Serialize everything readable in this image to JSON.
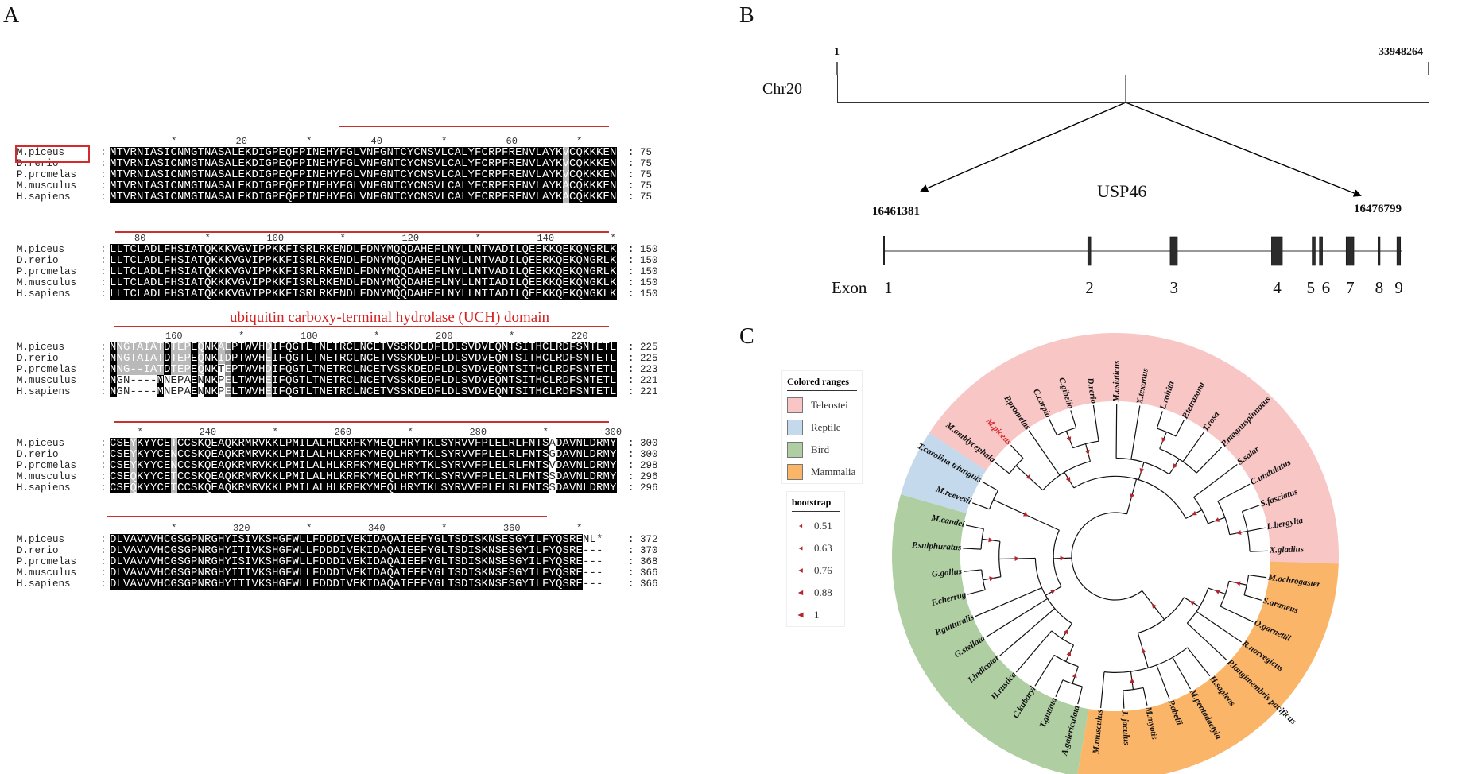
{
  "panels": {
    "a": "A",
    "b": "B",
    "c": "C"
  },
  "alignment": {
    "species": [
      "M.piceus",
      "D.rerio",
      "P.prcmelas",
      "M.musculus",
      "H.sapiens"
    ],
    "separator": ":",
    "domain_label": "ubiquitin carboxy-terminal hydrolase (UCH) domain",
    "blocks": [
      {
        "start": 1,
        "ruler": [
          {
            "pos": 10,
            "label": "*"
          },
          {
            "pos": 20,
            "label": "20"
          },
          {
            "pos": 30,
            "label": "*"
          },
          {
            "pos": 40,
            "label": "40"
          },
          {
            "pos": 50,
            "label": "*"
          },
          {
            "pos": 60,
            "label": "60"
          },
          {
            "pos": 70,
            "label": "*"
          }
        ],
        "masks": [
          "BBBBBBBBBBBBBBBBBBBBBBBBBBBBBBBBBBBBBBBBBBBBBBBBBBBBBBBBBBBBBBBBBBBGBBBBBBB"
        ],
        "rows": [
          {
            "seq": "MTVRNIASICNMGTNASALEKDIGPEQFPINEHYFGLVNFGNTCYCNSVLCALYFCRPFRENVLAYKVCQKKKEN",
            "count": "75"
          },
          {
            "seq": "MTVRNIASICNMGTNASALEKDIGPEQFPINEHYFGLVNFGNTCYCNSVLCALYFCRPFRENVLAYKVCQKKKEN",
            "count": "75"
          },
          {
            "seq": "MTVRNIASICNMGTNASALEKDIGPEQFPINEHYFGLVNFGNTCYCNSVLCALYFCRPFRENVLAYKVCQKKKEN",
            "count": "75"
          },
          {
            "seq": "MTVRNIASICNMGTNASALEKDIGPEQFPINEHYFGLVNFGNTCYCNSVLCALYFCRPFRENVLAYKACQKKKEN",
            "count": "75"
          },
          {
            "seq": "MTVRNIASICNMGTNASALEKDIGPEQFPINEHYFGLVNFGNTCYCNSVLCALYFCRPFRENVLAYKACQKKKEN",
            "count": "75"
          }
        ]
      },
      {
        "start": 76,
        "ruler": [
          {
            "pos": 80,
            "label": "80"
          },
          {
            "pos": 90,
            "label": "*"
          },
          {
            "pos": 100,
            "label": "100"
          },
          {
            "pos": 110,
            "label": "*"
          },
          {
            "pos": 120,
            "label": "120"
          },
          {
            "pos": 130,
            "label": "*"
          },
          {
            "pos": 140,
            "label": "140"
          },
          {
            "pos": 150,
            "label": "*"
          }
        ],
        "masks": [
          "BBBBBBBBBBBBBBBBBBBBBBBBBBBBBBBBBBBBBBBBBBBBBBBBBBBBBBBBBBBBBBBBBBBBBBBBBBB"
        ],
        "rows": [
          {
            "seq": "LLTCLADLFHSIATQKKKVGVIPPKKFISRLRKENDLFDNYMQQDAHEFLNYLLNTVADILQEEKKQEKQNGRLK",
            "count": "150"
          },
          {
            "seq": "LLTCLADLFHSIATQKKKVGVIPPKKFISRLRKENDLFDNYMQQDAHEFLNYLLNTVADILQEERKQEKQNGRLK",
            "count": "150"
          },
          {
            "seq": "LLTCLADLFHSIATQKKKVGVIPPKKFISRLRKENDLFDNYMQQDAHEFLNYLLNTVADILQEEKKQEKQNGRLK",
            "count": "150"
          },
          {
            "seq": "LLTCLADLFHSIATQKKKVGVIPPKKFISRLRKENDLFDNYMQQDAHEFLNYLLNTIADILQEEKKQEKQNGKLK",
            "count": "150"
          },
          {
            "seq": "LLTCLADLFHSIATQKKKVGVIPPKKFISRLRKENDLFDNYMQQDAHEFLNYLLNTIADILQEEKKQEKQNGKLK",
            "count": "150"
          }
        ]
      },
      {
        "start": 151,
        "ruler": [
          {
            "pos": 160,
            "label": "160"
          },
          {
            "pos": 170,
            "label": "*"
          },
          {
            "pos": 180,
            "label": "180"
          },
          {
            "pos": 190,
            "label": "*"
          },
          {
            "pos": 200,
            "label": "200"
          },
          {
            "pos": 210,
            "label": "*"
          },
          {
            "pos": 220,
            "label": "220"
          }
        ],
        "masks": [
          "BGGGGGGGBGGGBGBBGLBBBBBGBBBBBBBBBBBBBBBBBBBBBBBBBBBBBBBBBBBBBBBBBBBBBBBBBBB",
          "BGGGGGGGBGGGBGBBGLBBBBBGBBBBBBBBBBBBBBBBBBBBBBBBBBBBBBBBBBBBBBBBBBBBBBBBBBB",
          "BGGGGGGGBGGGBGBBWLBBBBBGBBBBBBBBBBBBBBBBBBBBBBBBBBBBBBBBBBBBBBBBBBBBBBBBBBB",
          "BWWWWWWBWWWWBWBBWLBBBBBGBBBBBBBBBBBBBBBBBBBBBBBBBBBBBBBBBBBBBBBBBBBBBBBBBBB",
          "BWWWWWWBWWWWBWBBWLBBBBBGBBBBBBBBBBBBBBBBBBBBBBBBBBBBBBBBBBBBBBBBBBBBBBBBBBB"
        ],
        "rows": [
          {
            "seq": "NNGTAIATDTEPEQNKAEPTWVHDIFQGTLTNETRCLNCETVSSKDEDFLDLSVDVEQNTSITHCLRDFSNTETL",
            "count": "225"
          },
          {
            "seq": "NNGTAIATDTEPEQNKIDPTWVHEIFQGTLTNETRCLNCETVSSKDEDFLDLSVDVEQNTSITHCLRDFSNTETL",
            "count": "225"
          },
          {
            "seq": "NNG--IATDTEPEQNKTEPTWVHDIFQGTLTNETRCLNCETVSSKDEDFLDLSVDVEQNTSITHCLRDFSNTETL",
            "count": "223"
          },
          {
            "seq": "NGN----MNEPAENNKPELTWVHEIFQGTLTNETRCLNCETVSSKDEDFLDLSVDVEQNTSITHCLRDFSNTETL",
            "count": "221"
          },
          {
            "seq": "NGN----MNEPAENNKPELTWVHEIFQGTLTNETRCLNCETVSSKDEDFLDLSVDVEQNTSITHCLRDFSNTETL",
            "count": "221"
          }
        ]
      },
      {
        "start": 226,
        "ruler": [
          {
            "pos": 230,
            "label": "*"
          },
          {
            "pos": 240,
            "label": "240"
          },
          {
            "pos": 250,
            "label": "*"
          },
          {
            "pos": 260,
            "label": "260"
          },
          {
            "pos": 270,
            "label": "*"
          },
          {
            "pos": 280,
            "label": "280"
          },
          {
            "pos": 290,
            "label": "*"
          },
          {
            "pos": 300,
            "label": "300"
          }
        ],
        "masks": [
          "BBBGBBBBBGBBBBBBBBBBBBBBBBBBBBBBBBBBBBBBBBBBBBBBBBBBBBBBBBBBBBBBBWBBBBBBBBB"
        ],
        "rows": [
          {
            "seq": "CSEYKYYCETCCSKQEAQKRMRVKKLPMILALHLKRFKYMEQLHRYTKLSYRVVFPLELRLFNTSADAVNLDRMY",
            "count": "300"
          },
          {
            "seq": "CSEYKYYCENCCSKQEAQKRMRVKKLPMILALHLKRFKYMEQLHRYTKLSYRVVFPLELRLFNTSGDAVNLDRMY",
            "count": "300"
          },
          {
            "seq": "CSEYKYYCENCCSKQEAQKRMRVKKLPMILALHLKRFKYMEQLHRYTKLSYRVVFPLELRLFNTSVDAVNLDRMY",
            "count": "298"
          },
          {
            "seq": "CSEQKYYCETCCSKQEAQKRMRVKKLPMILALHLKRFKYMEQLHRYTKLSYRVVFPLELRLFNTSSDAVNLDRMY",
            "count": "296"
          },
          {
            "seq": "CSEQKYYCETCCSKQEAQKRMRVKKLPMILALHLKRFKYMEQLHRYTKLSYRVVFPLELRLFNTSSDAVNLDRMY",
            "count": "296"
          }
        ]
      },
      {
        "start": 301,
        "ruler": [
          {
            "pos": 310,
            "label": "*"
          },
          {
            "pos": 320,
            "label": "320"
          },
          {
            "pos": 330,
            "label": "*"
          },
          {
            "pos": 340,
            "label": "340"
          },
          {
            "pos": 350,
            "label": "*"
          },
          {
            "pos": 360,
            "label": "360"
          },
          {
            "pos": 370,
            "label": "*"
          }
        ],
        "masks": [
          "BBBBBBBBBBBBBBBBBBBBBBBBBBBBBBBBBBBBBBBBBBBBBBBBBBBBBBBBBBBBBBBBBBBBBBWWW"
        ],
        "rows": [
          {
            "seq": "DLVAVVVHCGSGPNRGHYISIVKSHGFWLLFDDDIVEKIDAQAIEEFYGLTSDISKNSESGYILFYQSRENL*",
            "count": "372"
          },
          {
            "seq": "DLVAVVVHCGSGPNRGHYITIVKSHGFWLLFDDDIVEKIDAQAIEEFYGLTSDISKNSESGYILFYQSRE---",
            "count": "370"
          },
          {
            "seq": "DLVAVVVHCGSGPNRGHYISIVKSHGFWLLFDDDIVEKIDAQAIEEFYGLTSDISKNSESGYILFYQSRE---",
            "count": "368"
          },
          {
            "seq": "DLVAVVVHCGSGPNRGHYITIVKSHGFWLLFDDDIVEKIDAQAIEEFYGLTSDISKNSESGYILFYQSRE---",
            "count": "366"
          },
          {
            "seq": "DLVAVVVHCGSGPNRGHYITIVKSHGFWLLFDDDIVEKIDAQAIEEFYGLTSDISKNSESGYILFYQSRE---",
            "count": "366"
          }
        ]
      }
    ]
  },
  "chromosome": {
    "name": "Chr20",
    "start": "1",
    "end": "33948264"
  },
  "gene": {
    "name": "USP46",
    "start": "16461381",
    "end": "16476799",
    "exon_label": "Exon",
    "exons": [
      {
        "n": "1",
        "rel_pos": 0.0,
        "rel_width": 0.003
      },
      {
        "n": "2",
        "rel_width": 0.006
      },
      {
        "n": "3",
        "rel_width": 0.014
      },
      {
        "n": "4",
        "rel_width": 0.021
      },
      {
        "n": "5",
        "rel_width": 0.006
      },
      {
        "n": "6",
        "rel_width": 0.006
      },
      {
        "n": "7",
        "rel_width": 0.015
      },
      {
        "n": "8",
        "rel_width": 0.004
      },
      {
        "n": "9",
        "rel_width": 0.007
      }
    ]
  },
  "tree": {
    "legend_title": "Colored ranges",
    "groups": [
      {
        "name": "Teleostei",
        "color": "#f7c6c5"
      },
      {
        "name": "Reptile",
        "color": "#c5d9ec"
      },
      {
        "name": "Bird",
        "color": "#afcfa3"
      },
      {
        "name": "Mammalia",
        "color": "#fbb568"
      }
    ],
    "bootstrap_title": "bootstrap",
    "bootstrap_values": [
      "0.51",
      "0.63",
      "0.76",
      "0.88",
      "1"
    ],
    "bootstrap_color": "#b3262d",
    "highlight_color": "#d9292b",
    "tips": [
      {
        "name": "M.ochrogaster",
        "group": 3
      },
      {
        "name": "S.araneus",
        "group": 3
      },
      {
        "name": "O.garnettii",
        "group": 3
      },
      {
        "name": "R.norvegicus",
        "group": 3
      },
      {
        "name": "P.longimembris pacificus",
        "group": 3
      },
      {
        "name": "H.sapiens",
        "group": 3
      },
      {
        "name": "M.pentadactyla",
        "group": 3
      },
      {
        "name": "P.abelii",
        "group": 3
      },
      {
        "name": "M.myotis",
        "group": 3
      },
      {
        "name": "J. jaculus",
        "group": 3
      },
      {
        "name": "M.musculus",
        "group": 3
      },
      {
        "name": "A.galericulata",
        "group": 2
      },
      {
        "name": "T.guttata",
        "group": 2
      },
      {
        "name": "C.kubaryi",
        "group": 2
      },
      {
        "name": "H.rustica",
        "group": 2
      },
      {
        "name": "I.indicator",
        "group": 2
      },
      {
        "name": "G.stellata",
        "group": 2
      },
      {
        "name": "P.gutturalis",
        "group": 2
      },
      {
        "name": "F.cherrug",
        "group": 2
      },
      {
        "name": "G.gallus",
        "group": 2
      },
      {
        "name": "P.sulphuratus",
        "group": 2
      },
      {
        "name": "M.candei",
        "group": 2
      },
      {
        "name": "M.reevesii",
        "group": 1
      },
      {
        "name": "T.carolina triunguis",
        "group": 1
      },
      {
        "name": "M.amblycephala",
        "group": 0
      },
      {
        "name": "M.piceus",
        "group": 0,
        "highlight": true
      },
      {
        "name": "P.promelas",
        "group": 0
      },
      {
        "name": "C.carpio",
        "group": 0
      },
      {
        "name": "C.gibelio",
        "group": 0
      },
      {
        "name": "D.rerio",
        "group": 0
      },
      {
        "name": "M.asiaticus",
        "group": 0
      },
      {
        "name": "X.texanus",
        "group": 0
      },
      {
        "name": "L.rohita",
        "group": 0
      },
      {
        "name": "P.tetrazona",
        "group": 0
      },
      {
        "name": "T.rosa",
        "group": 0
      },
      {
        "name": "P.magnuspinnatus",
        "group": 0
      },
      {
        "name": "S.salar",
        "group": 0
      },
      {
        "name": "C.undulatus",
        "group": 0
      },
      {
        "name": "S.fasciatus",
        "group": 0
      },
      {
        "name": "L.bergylta",
        "group": 0
      },
      {
        "name": "X.gladius",
        "group": 0
      }
    ]
  }
}
